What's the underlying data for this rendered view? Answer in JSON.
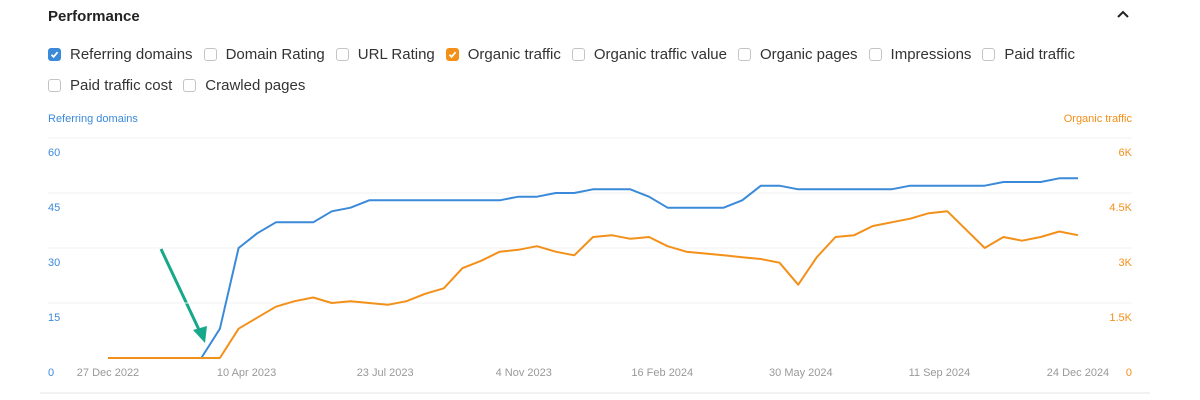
{
  "header": {
    "title": "Performance"
  },
  "metrics": [
    {
      "label": "Referring domains",
      "checked": true,
      "color": "#3b8ad9"
    },
    {
      "label": "Domain Rating",
      "checked": false
    },
    {
      "label": "URL Rating",
      "checked": false
    },
    {
      "label": "Organic traffic",
      "checked": true,
      "color": "#f3901a"
    },
    {
      "label": "Organic traffic value",
      "checked": false
    },
    {
      "label": "Organic pages",
      "checked": false
    },
    {
      "label": "Impressions",
      "checked": false
    },
    {
      "label": "Paid traffic",
      "checked": false
    },
    {
      "label": "Paid traffic cost",
      "checked": false
    },
    {
      "label": "Crawled pages",
      "checked": false
    }
  ],
  "chart_data": {
    "type": "line",
    "x": [
      "2022-12-27",
      "2023-01-10",
      "2023-01-24",
      "2023-02-07",
      "2023-02-21",
      "2023-03-07",
      "2023-03-21",
      "2023-04-04",
      "2023-04-18",
      "2023-05-02",
      "2023-05-16",
      "2023-05-30",
      "2023-06-13",
      "2023-06-27",
      "2023-07-11",
      "2023-07-25",
      "2023-08-08",
      "2023-08-22",
      "2023-09-05",
      "2023-09-19",
      "2023-10-03",
      "2023-10-17",
      "2023-10-31",
      "2023-11-14",
      "2023-11-28",
      "2023-12-12",
      "2023-12-26",
      "2024-01-09",
      "2024-01-23",
      "2024-02-06",
      "2024-02-20",
      "2024-03-05",
      "2024-03-19",
      "2024-04-02",
      "2024-04-16",
      "2024-04-30",
      "2024-05-14",
      "2024-05-28",
      "2024-06-11",
      "2024-06-25",
      "2024-07-09",
      "2024-07-23",
      "2024-08-06",
      "2024-08-20",
      "2024-09-03",
      "2024-09-17",
      "2024-10-01",
      "2024-10-15",
      "2024-10-29",
      "2024-11-12",
      "2024-11-26",
      "2024-12-10",
      "2024-12-24"
    ],
    "series": [
      {
        "name": "Referring domains",
        "color": "#3b8ad9",
        "axis": "y",
        "values": [
          0,
          0,
          0,
          0,
          0,
          0,
          8,
          30,
          34,
          37,
          37,
          37,
          40,
          41,
          43,
          43,
          43,
          43,
          43,
          43,
          43,
          43,
          44,
          44,
          45,
          45,
          46,
          46,
          46,
          44,
          41,
          41,
          41,
          41,
          43,
          47,
          47,
          46,
          46,
          46,
          46,
          46,
          46,
          47,
          47,
          47,
          47,
          47,
          48,
          48,
          48,
          49,
          49
        ]
      },
      {
        "name": "Organic traffic",
        "color": "#f3901a",
        "axis": "y2",
        "values": [
          0,
          0,
          0,
          0,
          0,
          0,
          0,
          800,
          1100,
          1400,
          1550,
          1650,
          1500,
          1550,
          1500,
          1450,
          1550,
          1750,
          1900,
          2450,
          2650,
          2900,
          2950,
          3050,
          2900,
          2800,
          3300,
          3350,
          3250,
          3300,
          3050,
          2900,
          2850,
          2800,
          2750,
          2700,
          2600,
          2000,
          2750,
          3300,
          3350,
          3600,
          3700,
          3800,
          3950,
          4000,
          3500,
          3000,
          3300,
          3200,
          3300,
          3450,
          3350
        ]
      }
    ],
    "xlim": [
      "2022-12-27",
      "2024-12-24"
    ],
    "xticks": [
      {
        "value": "2022-12-27",
        "label": "27 Dec 2022"
      },
      {
        "value": "2023-04-10",
        "label": "10 Apr 2023"
      },
      {
        "value": "2023-07-23",
        "label": "23 Jul 2023"
      },
      {
        "value": "2023-11-04",
        "label": "4 Nov 2023"
      },
      {
        "value": "2024-02-16",
        "label": "16 Feb 2024"
      },
      {
        "value": "2024-05-30",
        "label": "30 May 2024"
      },
      {
        "value": "2024-09-11",
        "label": "11 Sep 2024"
      },
      {
        "value": "2024-12-24",
        "label": "24 Dec 2024"
      }
    ],
    "ylim": [
      0,
      60
    ],
    "yticks": [
      0,
      15,
      30,
      45,
      60
    ],
    "y2lim": [
      0,
      6000
    ],
    "y2ticks": [
      0,
      {
        "value": 1500,
        "label": "1.5K"
      },
      {
        "value": 3000,
        "label": "3K"
      },
      {
        "value": 4500,
        "label": "4.5K"
      },
      {
        "value": 6000,
        "label": "6K"
      }
    ],
    "grid": true
  }
}
